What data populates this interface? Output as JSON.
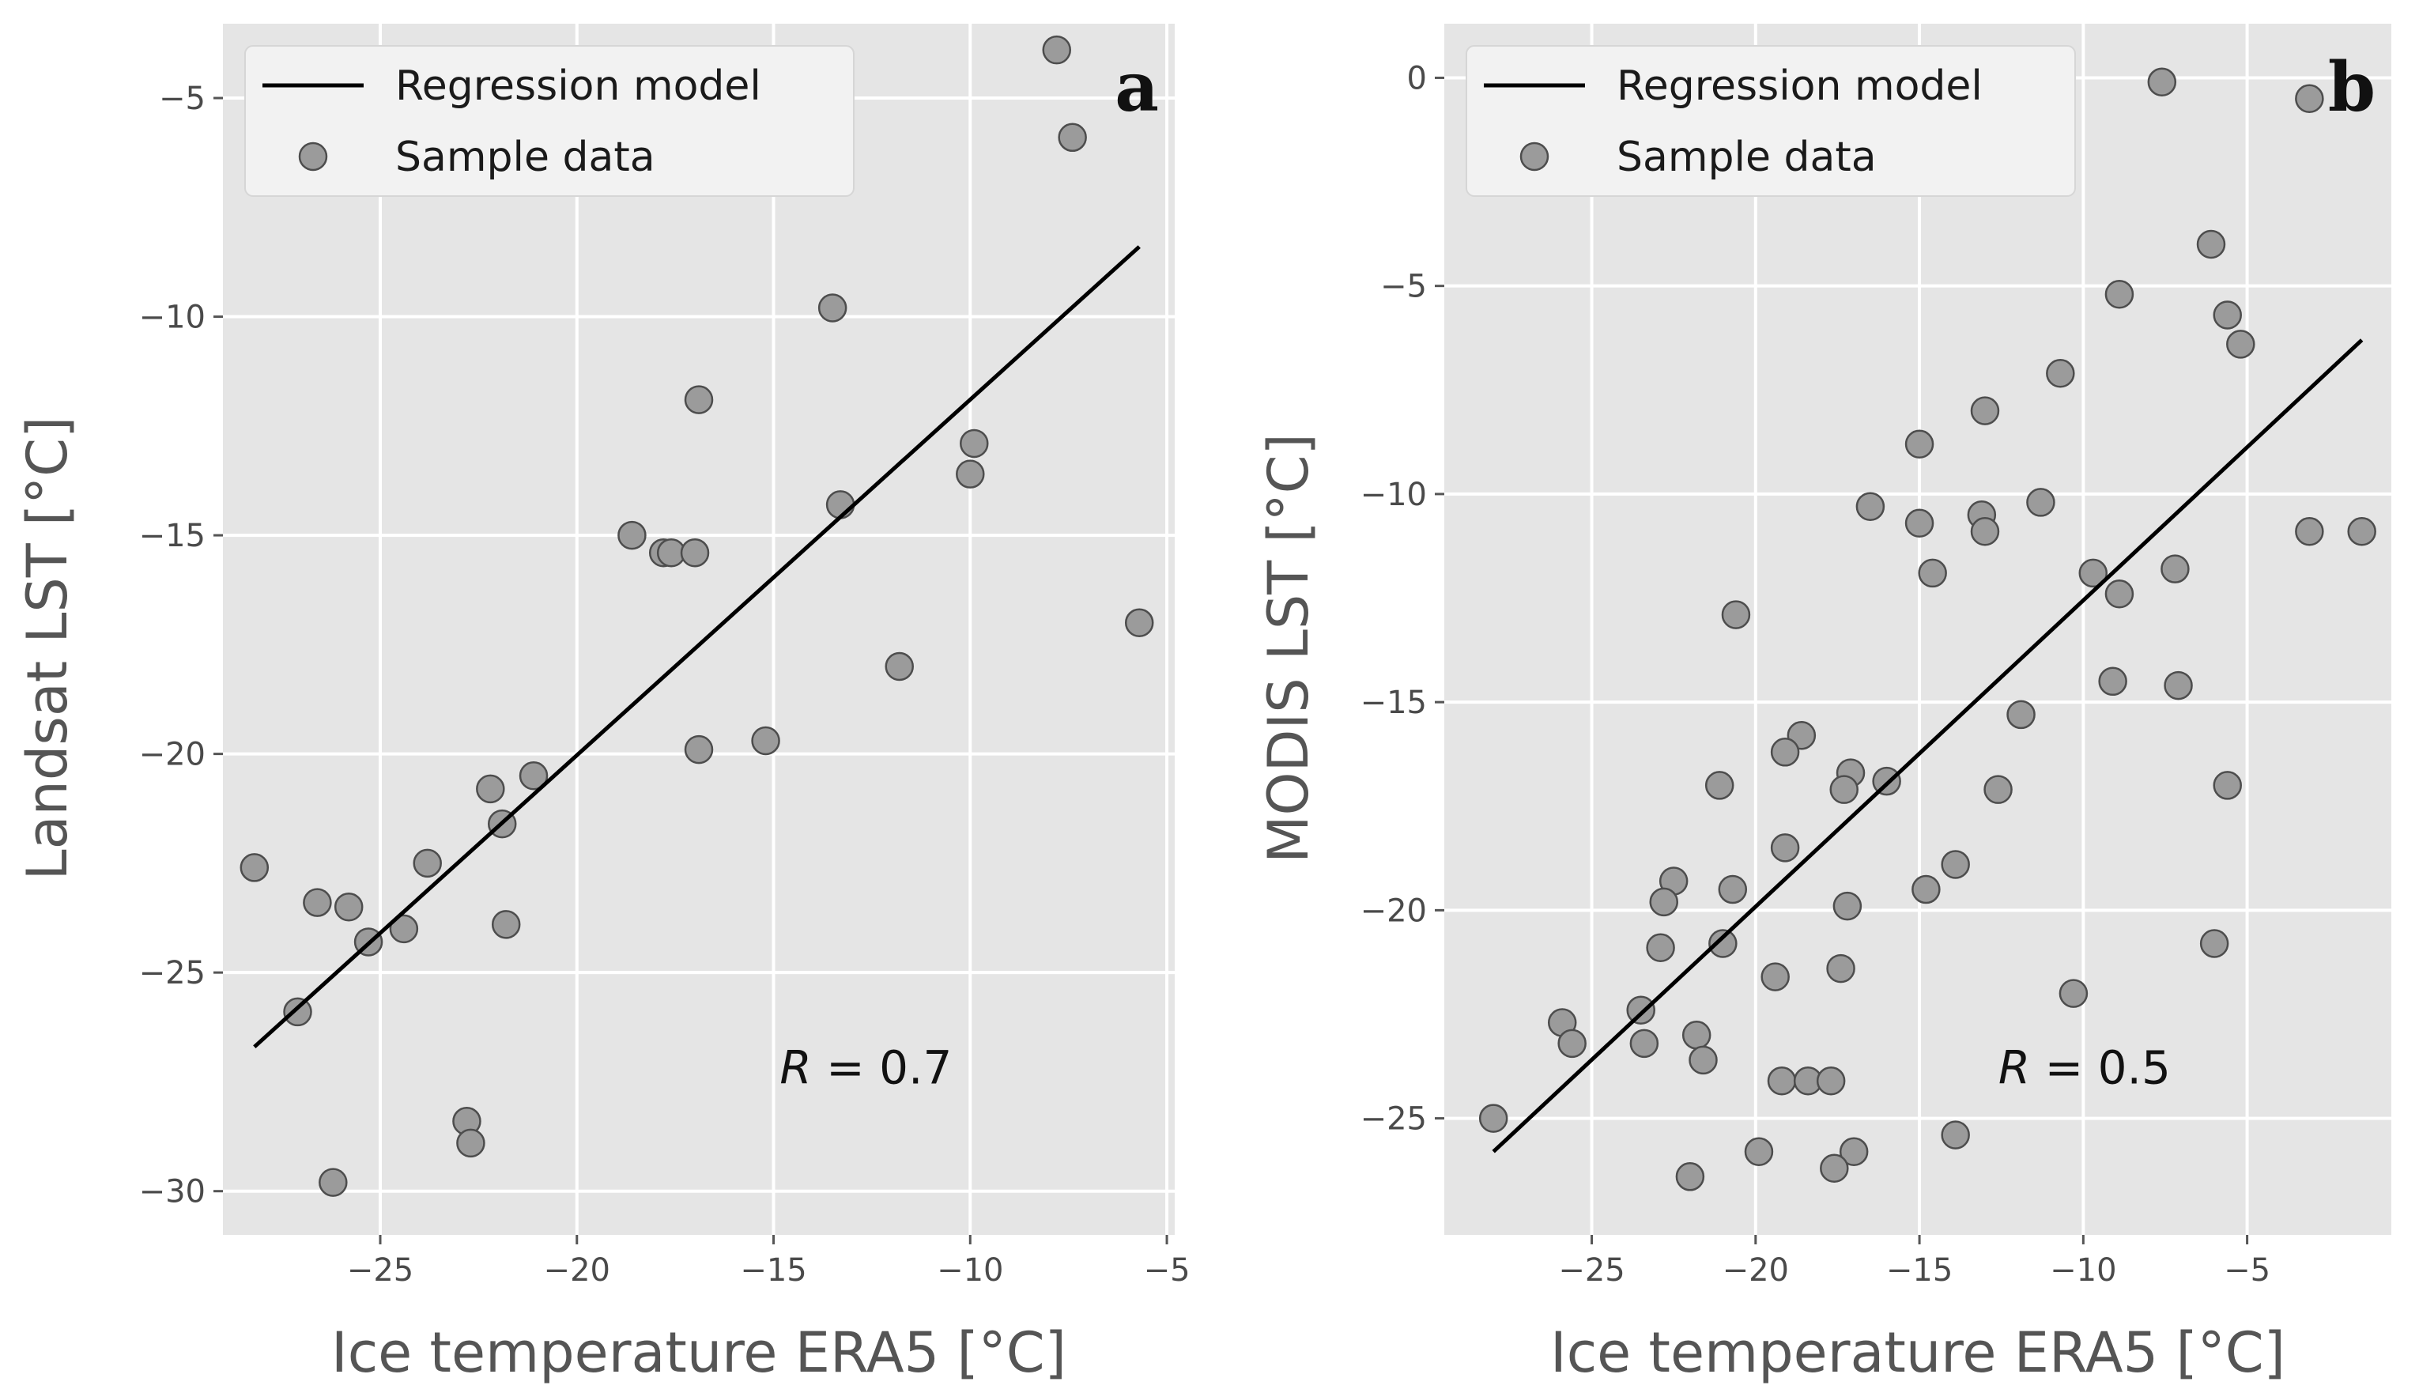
{
  "chart_data": [
    {
      "type": "scatter",
      "panel_label": "a",
      "xlabel": "Ice temperature ERA5 [°C]",
      "ylabel": "Landsat LST [°C]",
      "xlim": [
        -29.0,
        -4.8
      ],
      "ylim": [
        -31.0,
        -3.3
      ],
      "xticks": [
        -25,
        -20,
        -15,
        -10,
        -5
      ],
      "yticks": [
        -30,
        -25,
        -20,
        -15,
        -10,
        -5
      ],
      "xtick_labels": [
        "−25",
        "−20",
        "−15",
        "−10",
        "−5"
      ],
      "ytick_labels": [
        "−30",
        "−25",
        "−20",
        "−15",
        "−10",
        "−5"
      ],
      "grid": true,
      "legend": {
        "position": "upper-left",
        "entries": [
          "Regression model",
          "Sample data"
        ]
      },
      "annotation": {
        "var": "R",
        "text": " = 0.7"
      },
      "regression": {
        "x": [
          -28.2,
          -5.7
        ],
        "y": [
          -26.7,
          -8.4
        ]
      },
      "points": [
        [
          -7.8,
          -3.9
        ],
        [
          -7.4,
          -5.9
        ],
        [
          -13.5,
          -9.8
        ],
        [
          -16.9,
          -11.9
        ],
        [
          -9.9,
          -12.9
        ],
        [
          -10.0,
          -13.6
        ],
        [
          -13.3,
          -14.3
        ],
        [
          -18.6,
          -15.0
        ],
        [
          -17.8,
          -15.4
        ],
        [
          -17.6,
          -15.4
        ],
        [
          -17.0,
          -15.4
        ],
        [
          -5.7,
          -17.0
        ],
        [
          -11.8,
          -18.0
        ],
        [
          -15.2,
          -19.7
        ],
        [
          -16.9,
          -19.9
        ],
        [
          -21.1,
          -20.5
        ],
        [
          -22.2,
          -20.8
        ],
        [
          -21.9,
          -21.6
        ],
        [
          -28.2,
          -22.6
        ],
        [
          -23.8,
          -22.5
        ],
        [
          -26.6,
          -23.4
        ],
        [
          -25.8,
          -23.5
        ],
        [
          -24.4,
          -24.0
        ],
        [
          -21.8,
          -23.9
        ],
        [
          -25.3,
          -24.3
        ],
        [
          -27.1,
          -25.9
        ],
        [
          -22.8,
          -28.4
        ],
        [
          -22.7,
          -28.9
        ],
        [
          -26.2,
          -29.8
        ]
      ]
    },
    {
      "type": "scatter",
      "panel_label": "b",
      "xlabel": "Ice temperature ERA5 [°C]",
      "ylabel": "MODIS LST [°C]",
      "xlim": [
        -29.5,
        -0.6
      ],
      "ylim": [
        -27.8,
        1.3
      ],
      "xticks": [
        -25,
        -20,
        -15,
        -10,
        -5
      ],
      "yticks": [
        -25,
        -20,
        -15,
        -10,
        -5,
        0
      ],
      "xtick_labels": [
        "−25",
        "−20",
        "−15",
        "−10",
        "−5"
      ],
      "ytick_labels": [
        "−25",
        "−20",
        "−15",
        "−10",
        "−5",
        "0"
      ],
      "grid": true,
      "legend": {
        "position": "upper-left",
        "entries": [
          "Regression model",
          "Sample data"
        ]
      },
      "annotation": {
        "var": "R",
        "text": " = 0.5"
      },
      "regression": {
        "x": [
          -28.0,
          -1.5
        ],
        "y": [
          -25.8,
          -6.3
        ]
      },
      "points": [
        [
          -7.6,
          -0.1
        ],
        [
          -3.1,
          -0.5
        ],
        [
          -6.1,
          -4.0
        ],
        [
          -8.9,
          -5.2
        ],
        [
          -5.6,
          -5.7
        ],
        [
          -5.2,
          -6.4
        ],
        [
          -10.7,
          -7.1
        ],
        [
          -13.0,
          -8.0
        ],
        [
          -15.0,
          -8.8
        ],
        [
          -16.5,
          -10.3
        ],
        [
          -11.3,
          -10.2
        ],
        [
          -13.1,
          -10.5
        ],
        [
          -15.0,
          -10.7
        ],
        [
          -13.0,
          -10.9
        ],
        [
          -3.1,
          -10.9
        ],
        [
          -1.5,
          -10.9
        ],
        [
          -14.6,
          -11.9
        ],
        [
          -9.7,
          -11.9
        ],
        [
          -7.2,
          -11.8
        ],
        [
          -8.9,
          -12.4
        ],
        [
          -20.6,
          -12.9
        ],
        [
          -9.1,
          -14.5
        ],
        [
          -7.1,
          -14.6
        ],
        [
          -11.9,
          -15.3
        ],
        [
          -18.6,
          -15.8
        ],
        [
          -19.1,
          -16.2
        ],
        [
          -17.1,
          -16.7
        ],
        [
          -16.0,
          -16.9
        ],
        [
          -17.3,
          -17.1
        ],
        [
          -12.6,
          -17.1
        ],
        [
          -21.1,
          -17.0
        ],
        [
          -5.6,
          -17.0
        ],
        [
          -19.1,
          -18.5
        ],
        [
          -13.9,
          -18.9
        ],
        [
          -14.8,
          -19.5
        ],
        [
          -20.7,
          -19.5
        ],
        [
          -22.5,
          -19.3
        ],
        [
          -22.8,
          -19.8
        ],
        [
          -17.2,
          -19.9
        ],
        [
          -21.0,
          -20.8
        ],
        [
          -22.9,
          -20.9
        ],
        [
          -6.0,
          -20.8
        ],
        [
          -19.4,
          -21.6
        ],
        [
          -17.4,
          -21.4
        ],
        [
          -10.3,
          -22.0
        ],
        [
          -23.5,
          -22.4
        ],
        [
          -25.9,
          -22.7
        ],
        [
          -25.6,
          -23.2
        ],
        [
          -23.4,
          -23.2
        ],
        [
          -21.8,
          -23.0
        ],
        [
          -21.6,
          -23.6
        ],
        [
          -19.2,
          -24.1
        ],
        [
          -18.4,
          -24.1
        ],
        [
          -17.7,
          -24.1
        ],
        [
          -28.0,
          -25.0
        ],
        [
          -13.9,
          -25.4
        ],
        [
          -19.9,
          -25.8
        ],
        [
          -17.0,
          -25.8
        ],
        [
          -17.6,
          -26.2
        ],
        [
          -22.0,
          -26.4
        ]
      ]
    }
  ]
}
